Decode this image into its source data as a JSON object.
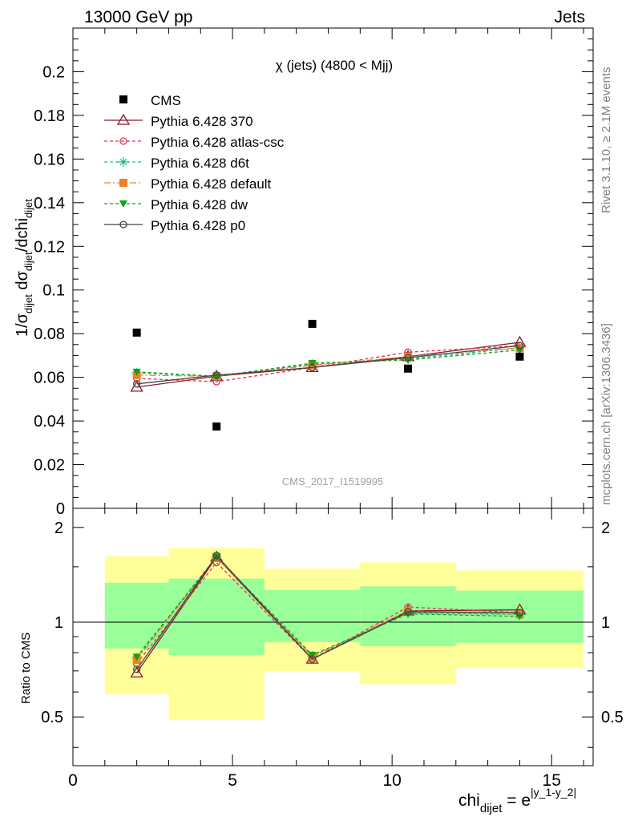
{
  "header": {
    "left": "13000 GeV pp",
    "right": "Jets"
  },
  "side": {
    "rivet": "Rivet 3.1.10, ≥ 2.1M events",
    "mcplots": "mcplots.cern.ch [arXiv:1306.3436]"
  },
  "watermark": "CMS_2017_I1519995",
  "chart_data": {
    "type": "scatter",
    "title": "χ (jets) (4800 < Mjj)",
    "ylabel_main": "1/σ_dijet dσ_dijet/dchi_dijet",
    "ylabel_ratio": "Ratio to CMS",
    "xlabel": "chi_dijet = e^|y_1-y_2|",
    "xlim": [
      0,
      16.3
    ],
    "ylim_main": [
      0,
      0.22
    ],
    "ylim_ratio": [
      0.35,
      2.3
    ],
    "x_ticks": [
      "0",
      "5",
      "10",
      "15"
    ],
    "y_ticks_main": [
      "0",
      "0.02",
      "0.04",
      "0.06",
      "0.08",
      "0.1",
      "0.12",
      "0.14",
      "0.16",
      "0.18",
      "0.2"
    ],
    "y_ticks_ratio": [
      "0.5",
      "1",
      "2"
    ],
    "bins": [
      [
        1,
        3
      ],
      [
        3,
        6
      ],
      [
        6,
        9
      ],
      [
        9,
        12
      ],
      [
        12,
        16
      ]
    ],
    "x": [
      2,
      4.5,
      7.5,
      10.5,
      14
    ],
    "data": {
      "name": "CMS",
      "values": [
        0.0805,
        0.0375,
        0.0845,
        0.064,
        0.0695
      ],
      "band_inner": [
        [
          0.825,
          1.335
        ],
        [
          0.785,
          1.375
        ],
        [
          0.865,
          1.265
        ],
        [
          0.84,
          1.3
        ],
        [
          0.86,
          1.26
        ]
      ],
      "band_outer": [
        [
          0.59,
          1.62
        ],
        [
          0.49,
          1.72
        ],
        [
          0.7,
          1.48
        ],
        [
          0.635,
          1.55
        ],
        [
          0.715,
          1.46
        ]
      ]
    },
    "series": [
      {
        "name": "Pythia 6.428 370",
        "color": "#8b1a2b",
        "dash": "",
        "marker": "triangle-open",
        "values": [
          0.0555,
          0.0605,
          0.0645,
          0.0695,
          0.076
        ]
      },
      {
        "name": "Pythia 6.428 atlas-csc",
        "color": "#e8304a",
        "dash": "4,3",
        "marker": "circle-open",
        "values": [
          0.0595,
          0.058,
          0.0645,
          0.0715,
          0.0745
        ]
      },
      {
        "name": "Pythia 6.428 d6t",
        "color": "#1ab98f",
        "dash": "4,3",
        "marker": "asterisk",
        "values": [
          0.062,
          0.0605,
          0.066,
          0.0685,
          0.0735
        ]
      },
      {
        "name": "Pythia 6.428 default",
        "color": "#f07f2a",
        "dash": "8,3,2,3",
        "marker": "square",
        "values": [
          0.061,
          0.0605,
          0.0655,
          0.0695,
          0.0735
        ]
      },
      {
        "name": "Pythia 6.428 dw",
        "color": "#14a014",
        "dash": "4,3",
        "marker": "triangle-down",
        "values": [
          0.0625,
          0.0605,
          0.0665,
          0.068,
          0.0725
        ]
      },
      {
        "name": "Pythia 6.428 p0",
        "color": "#444444",
        "dash": "",
        "marker": "circle-open",
        "values": [
          0.057,
          0.061,
          0.0645,
          0.069,
          0.0745
        ]
      }
    ],
    "ratios": [
      [
        0.69,
        1.61,
        0.763,
        1.086,
        1.094
      ],
      [
        0.739,
        1.547,
        0.763,
        1.117,
        1.072
      ],
      [
        0.77,
        1.613,
        0.781,
        1.07,
        1.058
      ],
      [
        0.758,
        1.613,
        0.775,
        1.086,
        1.058
      ],
      [
        0.776,
        1.613,
        0.787,
        1.063,
        1.043
      ],
      [
        0.708,
        1.627,
        0.763,
        1.078,
        1.072
      ]
    ]
  }
}
